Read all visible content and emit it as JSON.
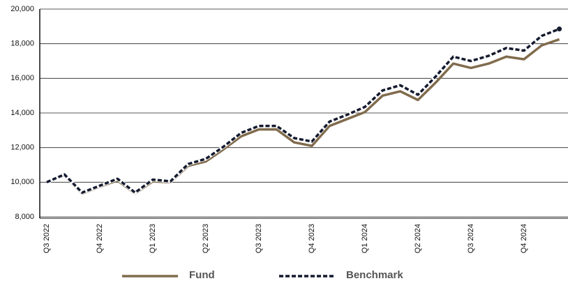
{
  "chart_data": {
    "type": "line",
    "categories": [
      "Q3 2022",
      null,
      null,
      "Q4 2022",
      null,
      null,
      "Q1 2023",
      null,
      null,
      "Q2 2023",
      null,
      null,
      "Q3 2023",
      null,
      null,
      "Q4 2023",
      null,
      null,
      "Q1 2024",
      null,
      null,
      "Q2 2024",
      null,
      null,
      "Q3 2024",
      null,
      null,
      "Q4 2024",
      null,
      null
    ],
    "series": [
      {
        "name": "Fund",
        "color": "#806b4c",
        "style": "solid",
        "values": [
          10000,
          10400,
          9350,
          9750,
          10100,
          9350,
          10050,
          10000,
          10950,
          11200,
          11900,
          12650,
          13050,
          13050,
          12300,
          12100,
          13250,
          13650,
          14050,
          15000,
          15250,
          14750,
          15750,
          16850,
          16600,
          16850,
          17250,
          17100,
          17900,
          18250
        ]
      },
      {
        "name": "Benchmark",
        "color": "#141a2e",
        "style": "dashed",
        "values": [
          10000,
          10450,
          9400,
          9800,
          10200,
          9400,
          10150,
          10050,
          11050,
          11350,
          12050,
          12850,
          13250,
          13250,
          12550,
          12350,
          13500,
          13900,
          14350,
          15300,
          15600,
          15050,
          16100,
          17250,
          17000,
          17300,
          17750,
          17600,
          18450,
          18850
        ]
      }
    ],
    "ylim": [
      8000,
      20000
    ],
    "yticks": [
      {
        "value": 8000,
        "label": "8,000"
      },
      {
        "value": 10000,
        "label": "10,000"
      },
      {
        "value": 12000,
        "label": "12,000"
      },
      {
        "value": 14000,
        "label": "14,000"
      },
      {
        "value": 16000,
        "label": "16,000"
      },
      {
        "value": 18000,
        "label": "18,000"
      },
      {
        "value": 20000,
        "label": "20,000"
      }
    ],
    "grid": true
  }
}
